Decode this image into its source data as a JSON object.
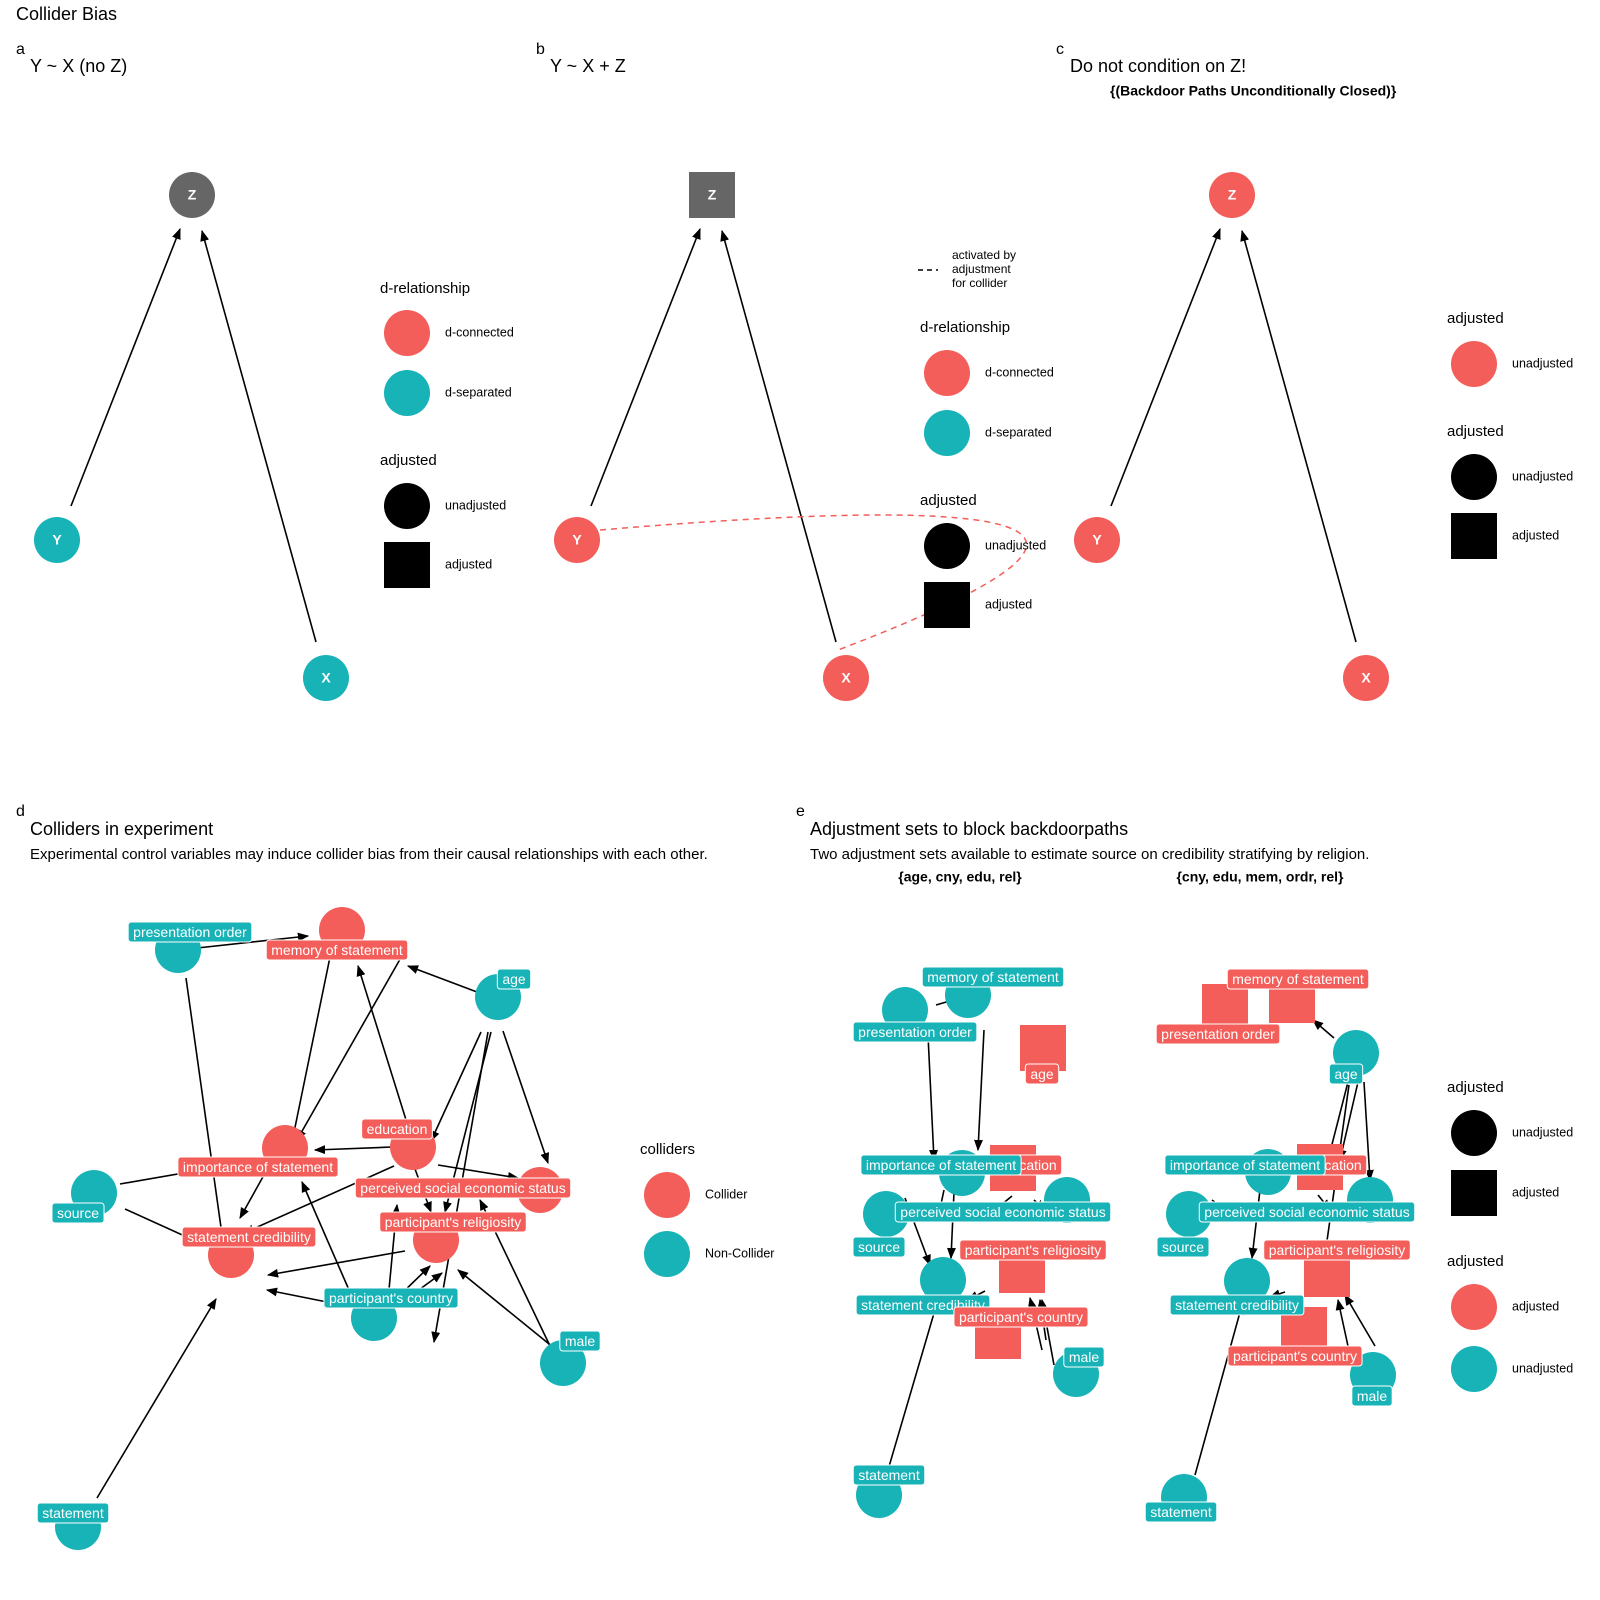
{
  "figure_title": "Collider Bias",
  "colors": {
    "red": "#f35e5a",
    "teal": "#17b3b7",
    "gray": "#666666",
    "edge": "#000000"
  },
  "panels": {
    "a": {
      "letter": "a",
      "title": "Y ~ X (no Z)",
      "nodes": {
        "Z": {
          "label": "Z",
          "shape": "circle",
          "color": "gray"
        },
        "Y": {
          "label": "Y",
          "shape": "circle",
          "color": "teal"
        },
        "X": {
          "label": "X",
          "shape": "circle",
          "color": "teal"
        }
      },
      "legend": {
        "title1": "d-relationship",
        "connected": "d-connected",
        "separated": "d-separated",
        "title2": "adjusted",
        "unadjusted": "unadjusted",
        "adjusted": "adjusted"
      }
    },
    "b": {
      "letter": "b",
      "title": "Y ~ X + Z",
      "nodes": {
        "Z": {
          "label": "Z",
          "shape": "square",
          "color": "gray"
        },
        "Y": {
          "label": "Y",
          "shape": "circle",
          "color": "red"
        },
        "X": {
          "label": "X",
          "shape": "circle",
          "color": "red"
        }
      },
      "legend": {
        "dash_l1": "activated by",
        "dash_l2": "adjustment",
        "dash_l3": "for collider",
        "title1": "d-relationship",
        "connected": "d-connected",
        "separated": "d-separated",
        "title2": "adjusted",
        "unadjusted": "unadjusted",
        "adjusted": "adjusted"
      }
    },
    "c": {
      "letter": "c",
      "title": "Do not condition on Z!",
      "subtitle": "{(Backdoor Paths Unconditionally Closed)}",
      "nodes": {
        "Z": {
          "label": "Z",
          "shape": "circle",
          "color": "red"
        },
        "Y": {
          "label": "Y",
          "shape": "circle",
          "color": "red"
        },
        "X": {
          "label": "X",
          "shape": "circle",
          "color": "red"
        }
      },
      "legend": {
        "title1": "adjusted",
        "unadjusted1": "unadjusted",
        "title2": "adjusted",
        "unadjusted2": "unadjusted",
        "adjusted2": "adjusted"
      }
    },
    "d": {
      "letter": "d",
      "title": "Colliders in experiment",
      "subtitle": "Experimental control variables may induce collider bias from their causal relationships with each other.",
      "labels": {
        "po": "presentation order",
        "mem": "memory of statement",
        "age": "age",
        "edu": "education",
        "imp": "importance of statement",
        "pses": "perceived social economic status",
        "rel": "participant's religiosity",
        "cred": "statement credibility",
        "src": "source",
        "cny": "participant's country",
        "male": "male",
        "stmt": "statement"
      },
      "legend": {
        "title": "colliders",
        "collider": "Collider",
        "non": "Non-Collider"
      }
    },
    "e": {
      "letter": "e",
      "title": "Adjustment sets to block backdoorpaths",
      "subtitle": "Two adjustment sets available to estimate source on credibility stratifying by religion.",
      "set1": "{age, cny, edu, rel}",
      "set2": "{cny, edu, mem, ordr, rel}",
      "labels": {
        "mem": "memory of statement",
        "po": "presentation order",
        "age": "age",
        "imp": "importance of statement",
        "edu_frag": "cation",
        "pses": "perceived social economic status",
        "src": "source",
        "rel": "participant's religiosity",
        "cred": "statement credibility",
        "cny": "participant's country",
        "male": "male",
        "stmt": "statement"
      },
      "legend": {
        "title1": "adjusted",
        "unadjusted1": "unadjusted",
        "adjusted1": "adjusted",
        "title2": "adjusted",
        "adjusted2": "adjusted",
        "unadjusted2": "unadjusted"
      }
    }
  }
}
